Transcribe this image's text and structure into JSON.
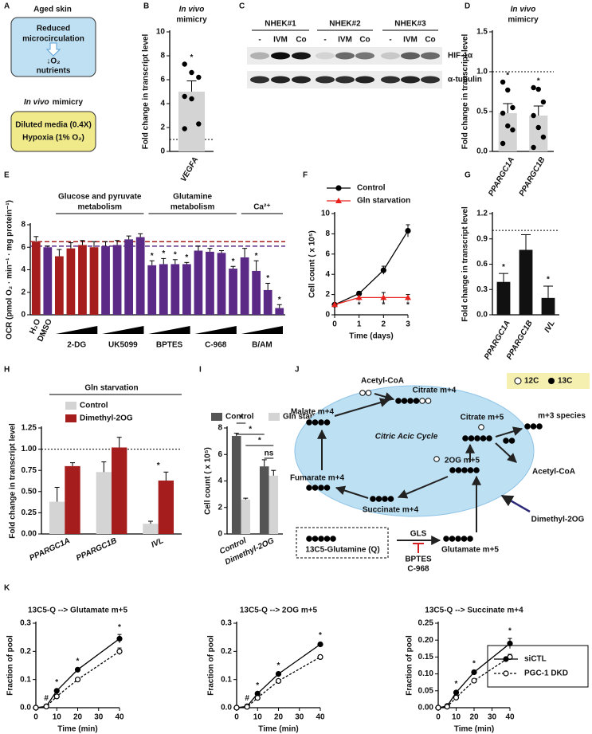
{
  "panel_labels": [
    "A",
    "B",
    "C",
    "D",
    "E",
    "F",
    "G",
    "H",
    "I",
    "J",
    "K"
  ],
  "panel_a": {
    "title": "Aged skin",
    "box1": [
      "Reduced",
      "microcirculation"
    ],
    "box1_lower": [
      "↓O₂",
      "nutrients"
    ],
    "title2": [
      "In vivo",
      "mimicry"
    ],
    "box2": [
      "Diluted media (0.4X)",
      "Hypoxia (1% O₂)"
    ]
  },
  "panel_c": {
    "groups": [
      "NHEK#1",
      "NHEK#2",
      "NHEK#3"
    ],
    "lanes": [
      "-",
      "IVM",
      "Co",
      "-",
      "IVM",
      "Co",
      "-",
      "IVM",
      "Co"
    ],
    "rows": [
      "HIF-1α",
      "α-tubulin"
    ]
  },
  "panel_j": {
    "labels": [
      "Acetyl-CoA",
      "Citrate m+4",
      "Malate m+4",
      "Citrate m+5",
      "m+3 species",
      "Fumarate m+4",
      "2OG m+5",
      "Acetyl-CoA",
      "Succinate m+4",
      "13C5-Glutamine (Q)",
      "Glutamate m+5"
    ],
    "cycle": "Citric Acic Cycle",
    "supplement": "Dimethyl-2OG",
    "enzyme": "GLS",
    "inhibitors": [
      "BPTES",
      "C-968"
    ],
    "legend": [
      "12C",
      "13C"
    ]
  },
  "chart_data": [
    {
      "type": "bar",
      "title": [
        "In vivo",
        "mimicry"
      ],
      "ylabel": "Fold change in transcript level",
      "categories": [
        "VEGFA"
      ],
      "values": [
        5.0
      ],
      "errors": [
        0.9
      ],
      "points": [
        [
          7.3,
          6.6,
          6.2,
          4.6,
          4.4,
          2.3,
          1.9
        ]
      ],
      "sig": [
        "*"
      ],
      "color": "#d4d4d4",
      "ylim": [
        0,
        10
      ],
      "yticks": [
        0,
        2,
        4,
        6,
        8,
        10
      ],
      "ref_line": 1
    },
    {
      "type": "bar",
      "title": [
        "In vivo",
        "mimicry"
      ],
      "ylabel": "Fold change in transcript level",
      "categories": [
        "PPARGC1A",
        "PPARGC1B"
      ],
      "values": [
        0.48,
        0.45
      ],
      "errors": [
        0.12,
        0.12
      ],
      "points": [
        [
          0.87,
          0.77,
          0.55,
          0.48,
          0.32,
          0.27,
          0.1
        ],
        [
          0.8,
          0.78,
          0.62,
          0.45,
          0.3,
          0.18,
          0.05
        ]
      ],
      "sig": [
        "*",
        "*"
      ],
      "color": "#d4d4d4",
      "ylim": [
        0,
        1.5
      ],
      "yticks": [
        {
          "value": 0,
          "label": "0.0"
        },
        {
          "value": 0.5,
          "label": "0.5"
        },
        {
          "value": 1,
          "label": "1.0"
        },
        {
          "value": 1.5,
          "label": "1.5"
        }
      ],
      "ref_line": 1
    },
    {
      "type": "bar",
      "ylabel": "OCR (pmol O₂ · min⁻¹ · mg protein⁻¹)",
      "ylim": [
        0,
        8
      ],
      "yticks": [
        0,
        2,
        4,
        6,
        8
      ],
      "groups": [
        {
          "name": "H₂O",
          "color": "#a51d1d",
          "values": [
            6.5
          ],
          "errors": [
            0.45
          ],
          "sig": [
            null
          ]
        },
        {
          "name": "DMSO",
          "color": "#5b2a86",
          "values": [
            6.0
          ],
          "errors": [
            0.1
          ],
          "sig": [
            null
          ]
        },
        {
          "name": "2-DG",
          "color": "#a51d1d",
          "values": [
            5.2,
            5.9,
            6.2,
            6.0
          ],
          "errors": [
            0.6,
            0.5,
            0.4,
            0.5
          ],
          "sig": [
            null,
            null,
            null,
            null
          ]
        },
        {
          "name": "UK5099",
          "color": "#5b2a86",
          "values": [
            6.1,
            6.2,
            6.7,
            6.9
          ],
          "errors": [
            0.4,
            0.4,
            0.3,
            0.3
          ],
          "sig": [
            null,
            null,
            null,
            null
          ]
        },
        {
          "name": "BPTES",
          "color": "#5b2a86",
          "values": [
            4.4,
            4.5,
            4.5,
            4.5
          ],
          "errors": [
            0.4,
            0.5,
            0.4,
            0.15
          ],
          "sig": [
            "*",
            "*",
            "*",
            "*"
          ]
        },
        {
          "name": "C-968",
          "color": "#5b2a86",
          "values": [
            5.7,
            5.6,
            5.5,
            4.1
          ],
          "errors": [
            0.4,
            0.3,
            0.2,
            0.2
          ],
          "sig": [
            null,
            null,
            null,
            "*"
          ]
        },
        {
          "name": "B/AM",
          "color": "#5b2a86",
          "values": [
            5.1,
            3.9,
            2.2,
            0.6
          ],
          "errors": [
            0.8,
            0.9,
            0.6,
            0.3
          ],
          "sig": [
            null,
            "*",
            "*",
            "*"
          ]
        }
      ],
      "headers": [
        {
          "text": [
            "Glucose and pyruvate",
            "metabolism"
          ],
          "groups": [
            "2-DG",
            "UK5099"
          ]
        },
        {
          "text": [
            "Glutamine",
            "metabolism"
          ],
          "groups": [
            "BPTES",
            "C-968"
          ]
        },
        {
          "text": [
            "Ca²⁺"
          ],
          "groups": [
            "B/AM"
          ]
        }
      ],
      "ref_lines": [
        {
          "value": 6.5,
          "color": "#a51d1d"
        },
        {
          "value": 6.1,
          "color": "#5b2a86"
        }
      ]
    },
    {
      "type": "line",
      "xlabel": "Time (days)",
      "ylabel": "Cell count ( x 10⁵)",
      "x": [
        0,
        1,
        2,
        3
      ],
      "xlim": [
        0,
        3
      ],
      "xticks": [
        0,
        1,
        2,
        3
      ],
      "ylim": [
        0,
        10
      ],
      "yticks": [
        0,
        2,
        4,
        6,
        8,
        10
      ],
      "legend": "top",
      "series": [
        {
          "name": "Control",
          "color": "#000000",
          "marker": "filled",
          "values": [
            1,
            2.1,
            4.4,
            8.3
          ],
          "errors": [
            0.1,
            0.2,
            0.4,
            0.6
          ]
        },
        {
          "name": "Gln starvation",
          "color": "#e8211d",
          "marker": "triangle",
          "values": [
            1,
            1.7,
            1.7,
            1.7
          ],
          "errors": [
            0.1,
            0.3,
            0.5,
            0.3
          ]
        }
      ],
      "sig": [
        null,
        "*",
        "*",
        "*"
      ],
      "sig_position": "below"
    },
    {
      "type": "bar",
      "ylabel": "Fold change in transcript level",
      "categories": [
        "PPARGC1A",
        "PPARGC1B",
        "IVL"
      ],
      "values": [
        0.39,
        0.77,
        0.2
      ],
      "errors": [
        0.1,
        0.18,
        0.14
      ],
      "sig": [
        "*",
        null,
        "*"
      ],
      "color": "#111111",
      "ylim": [
        0,
        1.2
      ],
      "yticks": [
        {
          "value": 0,
          "label": "0.0"
        },
        {
          "value": 0.3,
          "label": "0.3"
        },
        {
          "value": 0.6,
          "label": "0.6"
        },
        {
          "value": 0.9,
          "label": "0.9"
        },
        {
          "value": 1.2,
          "label": "1.2"
        }
      ],
      "ref_line": 1
    },
    {
      "type": "bar",
      "title": "Gln starvation",
      "ylabel": "Fold change in transcript level",
      "categories": [
        "PPARGC1A",
        "PPARGC1B",
        "IVL"
      ],
      "legend": "upper left",
      "series": [
        {
          "name": "Control",
          "color": "#d4d4d4",
          "values": [
            0.38,
            0.73,
            0.12
          ],
          "errors": [
            0.17,
            0.12,
            0.03
          ]
        },
        {
          "name": "Dimethyl-2OG",
          "color": "#a51d1d",
          "values": [
            0.8,
            1.02,
            0.63
          ],
          "errors": [
            0.04,
            0.12,
            0.1
          ]
        }
      ],
      "sig": [
        null,
        null,
        "*"
      ],
      "ylim": [
        0,
        1.25
      ],
      "yticks": [
        {
          "value": 0,
          "label": "0.00"
        },
        {
          "value": 0.25,
          "label": "0.25"
        },
        {
          "value": 0.5,
          "label": "0.50"
        },
        {
          "value": 0.75,
          "label": "0.75"
        },
        {
          "value": 1,
          "label": "1.00"
        },
        {
          "value": 1.25,
          "label": "1.25"
        }
      ],
      "ref_line": 1
    },
    {
      "type": "bar",
      "ylabel": "Cell count ( x 10⁵)",
      "categories": [
        "Control",
        "Dimethyl-2OG"
      ],
      "legend": "top",
      "series": [
        {
          "name": "Control",
          "color": "#555555",
          "values": [
            7.4,
            5.1
          ],
          "errors": [
            0.2,
            0.5
          ]
        },
        {
          "name": "Gln starvation",
          "color": "#d4d4d4",
          "values": [
            2.6,
            4.4
          ],
          "errors": [
            0.1,
            0.4
          ]
        }
      ],
      "ylim": [
        0,
        8
      ],
      "yticks": [
        0,
        2,
        4,
        6,
        8
      ],
      "brackets": [
        "*",
        "*",
        "*",
        "ns"
      ]
    },
    {
      "type": "line",
      "title": "13C5-Q --> Glutamate m+5",
      "xlabel": "Time (min)",
      "ylabel": "Fraction of pool",
      "x": [
        0,
        5,
        10,
        20,
        40
      ],
      "xlim": [
        0,
        40
      ],
      "xticks": [
        0,
        10,
        20,
        30,
        40
      ],
      "ylim": [
        0,
        0.3
      ],
      "yticks": [
        {
          "value": 0,
          "label": "0.0"
        },
        {
          "value": 0.1,
          "label": "0.1"
        },
        {
          "value": 0.2,
          "label": "0.2"
        },
        {
          "value": 0.3,
          "label": "0.3"
        }
      ],
      "series": [
        {
          "color": "#000000",
          "marker": "filled",
          "values": [
            0,
            0.005,
            0.06,
            0.135,
            0.245
          ],
          "errors": [
            0,
            0.002,
            0.004,
            0.004,
            0.015
          ]
        },
        {
          "color": "#000000",
          "marker": "open",
          "dash": true,
          "values": [
            0,
            0.004,
            0.04,
            0.1,
            0.2
          ],
          "errors": [
            0,
            0.002,
            0.004,
            0.004,
            0.012
          ]
        }
      ],
      "sig": [
        null,
        "#",
        "*",
        "*",
        "*"
      ]
    },
    {
      "type": "line",
      "title": "13C5-Q --> 2OG m+5",
      "xlabel": "Time (min)",
      "ylabel": "Fraction of pool",
      "x": [
        0,
        5,
        10,
        20,
        40
      ],
      "xlim": [
        0,
        40
      ],
      "xticks": [
        0,
        10,
        20,
        30,
        40
      ],
      "ylim": [
        0,
        0.3
      ],
      "yticks": [
        {
          "value": 0,
          "label": "0.0"
        },
        {
          "value": 0.1,
          "label": "0.1"
        },
        {
          "value": 0.2,
          "label": "0.2"
        },
        {
          "value": 0.3,
          "label": "0.3"
        }
      ],
      "series": [
        {
          "color": "#000000",
          "marker": "filled",
          "values": [
            0,
            0.005,
            0.05,
            0.12,
            0.225
          ],
          "errors": [
            0,
            0.002,
            0.003,
            0.004,
            0.006
          ]
        },
        {
          "color": "#000000",
          "marker": "open",
          "dash": true,
          "values": [
            0,
            0.003,
            0.035,
            0.095,
            0.18
          ],
          "errors": [
            0,
            0.002,
            0.003,
            0.004,
            0.004
          ]
        }
      ],
      "sig": [
        null,
        "#",
        "*",
        "*",
        "*"
      ]
    },
    {
      "type": "line",
      "title": "13C5-Q --> Succinate m+4",
      "xlabel": "Time (min)",
      "ylabel": "Fraction of pool",
      "x": [
        0,
        5,
        10,
        20,
        40
      ],
      "xlim": [
        0,
        40
      ],
      "xticks": [
        0,
        10,
        20,
        30,
        40
      ],
      "ylim": [
        0,
        0.25
      ],
      "yticks": [
        {
          "value": 0,
          "label": "0.00"
        },
        {
          "value": 0.05,
          "label": "0.05"
        },
        {
          "value": 0.1,
          "label": "0.10"
        },
        {
          "value": 0.15,
          "label": "0.15"
        },
        {
          "value": 0.2,
          "label": "0.20"
        },
        {
          "value": 0.25,
          "label": "0.25"
        }
      ],
      "legend": "right",
      "series": [
        {
          "name": "siCTL",
          "color": "#000000",
          "marker": "filled",
          "values": [
            0,
            0.005,
            0.045,
            0.105,
            0.19
          ],
          "errors": [
            0,
            0.002,
            0.004,
            0.004,
            0.015
          ]
        },
        {
          "name": "PGC-1 DKD",
          "color": "#000000",
          "marker": "open",
          "dash": true,
          "values": [
            0,
            0.003,
            0.03,
            0.08,
            0.15
          ],
          "errors": [
            0,
            0.002,
            0.003,
            0.004,
            0.008
          ]
        }
      ],
      "sig": [
        null,
        null,
        "*",
        "*",
        "*"
      ]
    }
  ]
}
